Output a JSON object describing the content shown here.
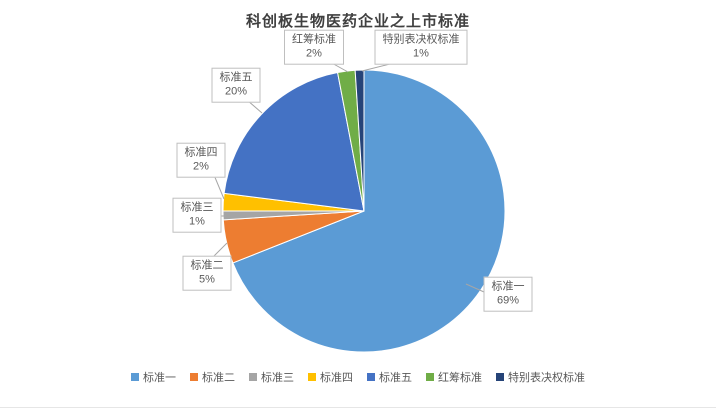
{
  "chart_data": {
    "type": "pie",
    "title": "科创板生物医药企业之上市标准",
    "legend_position": "bottom",
    "start_angle_deg": 0,
    "direction": "clockwise",
    "leader_line_color": "#a6a6a6",
    "label_border_color": "#bfbfbf",
    "slices": [
      {
        "name": "标准一",
        "value": 69,
        "percent_label": "69%",
        "color": "#5B9BD5"
      },
      {
        "name": "标准二",
        "value": 5,
        "percent_label": "5%",
        "color": "#ED7D31"
      },
      {
        "name": "标准三",
        "value": 1,
        "percent_label": "1%",
        "color": "#A5A5A5"
      },
      {
        "name": "标准四",
        "value": 2,
        "percent_label": "2%",
        "color": "#FFC000"
      },
      {
        "name": "标准五",
        "value": 20,
        "percent_label": "20%",
        "color": "#4472C4"
      },
      {
        "name": "红筹标准",
        "value": 2,
        "percent_label": "2%",
        "color": "#70AD47"
      },
      {
        "name": "特别表决权标准",
        "value": 1,
        "percent_label": "1%",
        "color": "#264478"
      }
    ]
  }
}
